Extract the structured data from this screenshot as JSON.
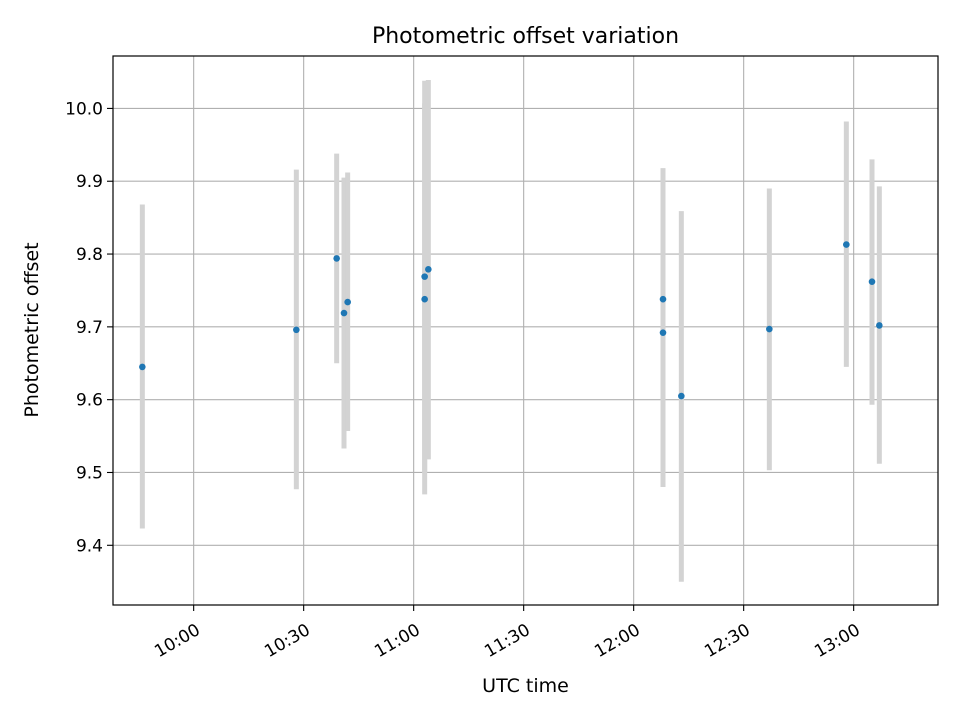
{
  "chart_data": {
    "type": "scatter",
    "title": "Photometric offset variation",
    "xlabel": "UTC time",
    "ylabel": "Photometric offset",
    "x_ticks": [
      "10:00",
      "10:30",
      "11:00",
      "11:30",
      "12:00",
      "12:30",
      "13:00"
    ],
    "y_ticks": [
      "9.4",
      "9.5",
      "9.6",
      "9.7",
      "9.8",
      "9.9",
      "10.0"
    ],
    "xlim": [
      "09:38",
      "13:23"
    ],
    "ylim": [
      9.318,
      10.072
    ],
    "grid": true,
    "marker_color": "#1f77b4",
    "errorbar_color": "#d3d3d3",
    "points": [
      {
        "x": "09:46",
        "y": 9.645,
        "low": 9.423,
        "high": 9.868
      },
      {
        "x": "10:28",
        "y": 9.696,
        "low": 9.477,
        "high": 9.916
      },
      {
        "x": "10:39",
        "y": 9.794,
        "low": 9.65,
        "high": 9.938
      },
      {
        "x": "10:41",
        "y": 9.719,
        "low": 9.533,
        "high": 9.905
      },
      {
        "x": "10:42",
        "y": 9.734,
        "low": 9.557,
        "high": 9.912
      },
      {
        "x": "11:03",
        "y": 9.738,
        "low": 9.47,
        "high": 10.007
      },
      {
        "x": "11:03",
        "y": 9.769,
        "low": 9.5,
        "high": 10.038
      },
      {
        "x": "11:04",
        "y": 9.779,
        "low": 9.518,
        "high": 10.039
      },
      {
        "x": "12:08",
        "y": 9.738,
        "low": 9.558,
        "high": 9.918
      },
      {
        "x": "12:08",
        "y": 9.692,
        "low": 9.48,
        "high": 9.904
      },
      {
        "x": "12:13",
        "y": 9.605,
        "low": 9.35,
        "high": 9.859
      },
      {
        "x": "12:37",
        "y": 9.697,
        "low": 9.503,
        "high": 9.89
      },
      {
        "x": "12:58",
        "y": 9.813,
        "low": 9.645,
        "high": 9.982
      },
      {
        "x": "13:05",
        "y": 9.762,
        "low": 9.593,
        "high": 9.93
      },
      {
        "x": "13:07",
        "y": 9.702,
        "low": 9.512,
        "high": 9.893
      }
    ]
  }
}
